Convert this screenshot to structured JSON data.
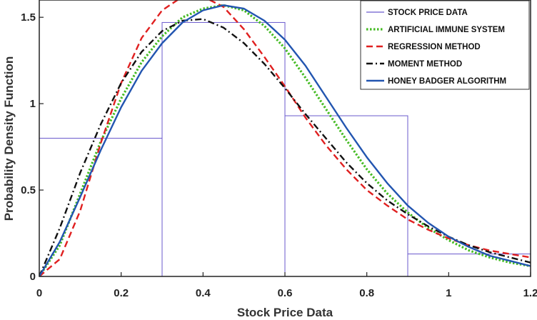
{
  "chart_data": {
    "type": "line",
    "title": "",
    "xlabel": "Stock Price Data",
    "ylabel": "Probability Density Function",
    "xlim": [
      0,
      1.2
    ],
    "ylim": [
      0,
      1.6
    ],
    "x_ticks": [
      "0",
      "0.2",
      "0.4",
      "0.6",
      "0.8",
      "1",
      "1.2"
    ],
    "y_ticks": [
      "0",
      "0.5",
      "1",
      "1.5"
    ],
    "grid": false,
    "legend_position": "top-right",
    "histogram": {
      "name": "STOCK PRICE DATA",
      "color": "#6a5acd",
      "bin_edges": [
        0,
        0.3,
        0.6,
        0.9,
        1.2
      ],
      "values": [
        0.8,
        1.47,
        0.93,
        0.13
      ]
    },
    "series": [
      {
        "name": "ARTIFICIAL IMMUNE SYSTEM",
        "color": "#44bb22",
        "style": "dotted",
        "x": [
          0,
          0.05,
          0.1,
          0.15,
          0.2,
          0.25,
          0.3,
          0.35,
          0.4,
          0.45,
          0.5,
          0.55,
          0.6,
          0.65,
          0.7,
          0.75,
          0.8,
          0.85,
          0.9,
          0.95,
          1.0,
          1.05,
          1.1,
          1.15,
          1.2
        ],
        "values": [
          0,
          0.18,
          0.48,
          0.78,
          1.03,
          1.24,
          1.39,
          1.5,
          1.55,
          1.57,
          1.54,
          1.45,
          1.32,
          1.15,
          0.97,
          0.79,
          0.62,
          0.48,
          0.37,
          0.28,
          0.21,
          0.15,
          0.11,
          0.08,
          0.06
        ]
      },
      {
        "name": "REGRESSION METHOD",
        "color": "#e02020",
        "style": "dashed",
        "x": [
          0,
          0.05,
          0.1,
          0.15,
          0.2,
          0.25,
          0.3,
          0.35,
          0.4,
          0.45,
          0.5,
          0.55,
          0.6,
          0.65,
          0.7,
          0.75,
          0.8,
          0.85,
          0.9,
          0.95,
          1.0,
          1.05,
          1.1,
          1.15,
          1.2
        ],
        "values": [
          0,
          0.1,
          0.38,
          0.77,
          1.12,
          1.38,
          1.54,
          1.62,
          1.62,
          1.56,
          1.43,
          1.27,
          1.1,
          0.92,
          0.76,
          0.62,
          0.5,
          0.41,
          0.33,
          0.27,
          0.22,
          0.18,
          0.15,
          0.13,
          0.11
        ]
      },
      {
        "name": "MOMENT METHOD",
        "color": "#111111",
        "style": "dashdot",
        "x": [
          0,
          0.05,
          0.1,
          0.15,
          0.2,
          0.25,
          0.3,
          0.35,
          0.4,
          0.45,
          0.5,
          0.55,
          0.6,
          0.65,
          0.7,
          0.75,
          0.8,
          0.85,
          0.9,
          0.95,
          1.0,
          1.05,
          1.1,
          1.15,
          1.2
        ],
        "values": [
          0,
          0.28,
          0.6,
          0.88,
          1.12,
          1.3,
          1.42,
          1.48,
          1.49,
          1.44,
          1.35,
          1.23,
          1.09,
          0.94,
          0.8,
          0.66,
          0.54,
          0.44,
          0.36,
          0.29,
          0.23,
          0.18,
          0.14,
          0.11,
          0.08
        ]
      },
      {
        "name": "HONEY BADGER ALGORITHM",
        "color": "#2255b0",
        "style": "solid",
        "x": [
          0,
          0.05,
          0.1,
          0.15,
          0.2,
          0.25,
          0.3,
          0.35,
          0.4,
          0.45,
          0.5,
          0.55,
          0.6,
          0.65,
          0.7,
          0.75,
          0.8,
          0.85,
          0.9,
          0.95,
          1.0,
          1.05,
          1.1,
          1.15,
          1.2
        ],
        "values": [
          0,
          0.2,
          0.46,
          0.73,
          0.98,
          1.19,
          1.35,
          1.47,
          1.54,
          1.57,
          1.55,
          1.48,
          1.37,
          1.22,
          1.04,
          0.86,
          0.69,
          0.54,
          0.41,
          0.31,
          0.23,
          0.17,
          0.12,
          0.09,
          0.06
        ]
      }
    ]
  }
}
